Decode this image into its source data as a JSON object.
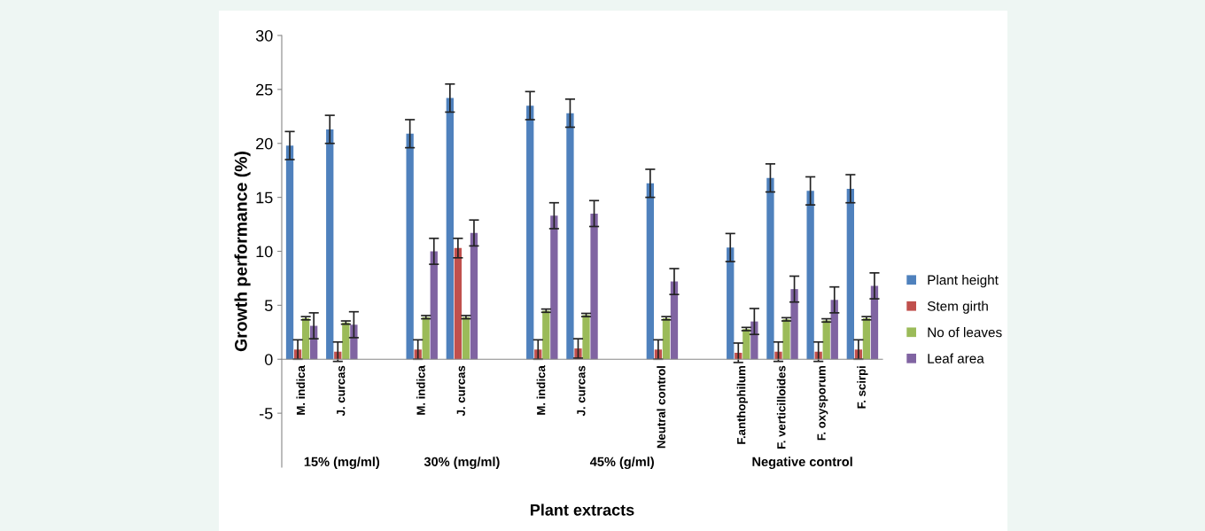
{
  "chart_data": {
    "type": "bar",
    "xlabel": "Plant extracts",
    "ylabel": "Growth performance (%)",
    "categories": [
      "M. indica",
      "J. curcas",
      null,
      "M. indica",
      "J. curcas",
      null,
      "M. indica",
      "J. curcas",
      null,
      "Neutral control",
      null,
      "F.anthophilum",
      "F. verticilloides",
      "F. oxysporum",
      "F. scirpi"
    ],
    "series": [
      {
        "name": "Plant height",
        "color": "#4f81bd",
        "values": [
          19.8,
          21.3,
          null,
          20.9,
          24.2,
          null,
          23.5,
          22.8,
          null,
          16.3,
          null,
          10.35,
          16.8,
          15.6,
          15.8
        ],
        "errors": [
          1.3,
          1.3,
          null,
          1.3,
          1.3,
          null,
          1.3,
          1.3,
          null,
          1.3,
          null,
          1.3,
          1.3,
          1.3,
          1.3
        ]
      },
      {
        "name": "Stem girth",
        "color": "#c0504d",
        "values": [
          0.9,
          0.7,
          null,
          0.9,
          10.3,
          null,
          0.9,
          1.0,
          null,
          0.9,
          null,
          0.6,
          0.7,
          0.7,
          0.9
        ],
        "errors": [
          0.9,
          0.9,
          null,
          0.9,
          0.9,
          null,
          0.9,
          0.9,
          null,
          0.9,
          null,
          0.9,
          0.9,
          0.9,
          0.9
        ]
      },
      {
        "name": "No of leaves",
        "color": "#9bbb59",
        "values": [
          3.8,
          3.4,
          null,
          3.9,
          3.9,
          null,
          4.5,
          4.1,
          null,
          3.8,
          null,
          2.8,
          3.7,
          3.6,
          3.8
        ],
        "errors": [
          0.15,
          0.15,
          null,
          0.15,
          0.15,
          null,
          0.15,
          0.15,
          null,
          0.15,
          null,
          0.15,
          0.15,
          0.15,
          0.15
        ]
      },
      {
        "name": "Leaf area",
        "color": "#8064a2",
        "values": [
          3.1,
          3.2,
          null,
          10.0,
          11.7,
          null,
          13.3,
          13.5,
          null,
          7.2,
          null,
          3.5,
          6.5,
          5.5,
          6.8
        ],
        "errors": [
          1.2,
          1.2,
          null,
          1.2,
          1.2,
          null,
          1.2,
          1.2,
          null,
          1.2,
          null,
          1.2,
          1.2,
          1.2,
          1.2
        ]
      }
    ],
    "annotations": [
      "15% (mg/ml)",
      "30% (mg/ml)",
      "45% (g/ml)",
      "Negative control"
    ],
    "ylim": [
      -10,
      30
    ],
    "yticks": [
      -5,
      0,
      5,
      10,
      15,
      20,
      25,
      30
    ],
    "grid": false,
    "legend": "right"
  }
}
